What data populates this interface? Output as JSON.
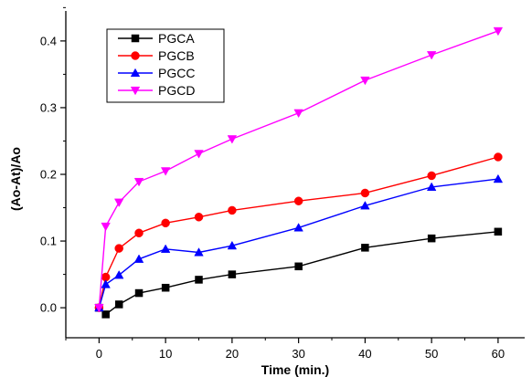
{
  "chart_data": {
    "type": "line",
    "title": "",
    "xlabel": "Time (min.)",
    "ylabel": "(Ao-At)/Ao",
    "xlim": [
      -5,
      64
    ],
    "ylim": [
      -0.045,
      0.445
    ],
    "xticks": [
      0,
      10,
      20,
      30,
      40,
      50,
      60
    ],
    "yticks": [
      0.0,
      0.1,
      0.2,
      0.3,
      0.4
    ],
    "xtick_labels": [
      "0",
      "10",
      "20",
      "30",
      "40",
      "50",
      "60"
    ],
    "ytick_labels": [
      "0.0",
      "0.1",
      "0.2",
      "0.3",
      "0.4"
    ],
    "x": [
      0,
      1,
      3,
      6,
      10,
      15,
      20,
      30,
      40,
      50,
      60
    ],
    "grid": false,
    "legend_position": "top-left",
    "series": [
      {
        "name": "PGCA",
        "color": "#000000",
        "marker": "square",
        "values": [
          0.0,
          -0.01,
          0.005,
          0.022,
          0.03,
          0.042,
          0.05,
          0.062,
          0.09,
          0.104,
          0.114
        ]
      },
      {
        "name": "PGCB",
        "color": "#ff0000",
        "marker": "circle",
        "values": [
          0.0,
          0.046,
          0.089,
          0.112,
          0.127,
          0.136,
          0.146,
          0.16,
          0.172,
          0.198,
          0.226
        ]
      },
      {
        "name": "PGCC",
        "color": "#0000ff",
        "marker": "triangle-up",
        "values": [
          0.0,
          0.035,
          0.049,
          0.073,
          0.088,
          0.083,
          0.093,
          0.12,
          0.153,
          0.181,
          0.193
        ]
      },
      {
        "name": "PGCD",
        "color": "#ff00ff",
        "marker": "triangle-down",
        "values": [
          0.0,
          0.122,
          0.158,
          0.189,
          0.205,
          0.231,
          0.253,
          0.292,
          0.341,
          0.379,
          0.415
        ]
      }
    ]
  }
}
